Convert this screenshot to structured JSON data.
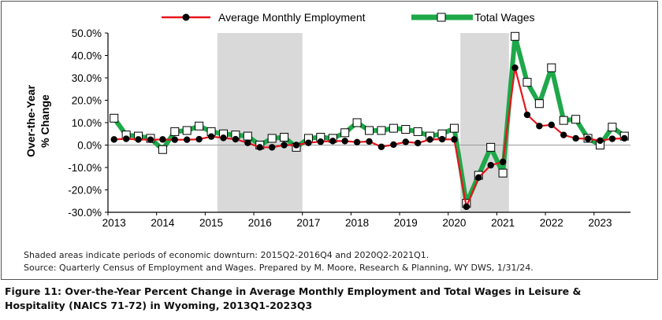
{
  "chart_data": {
    "type": "line",
    "ylabel": [
      "Over-the-Year",
      "% Change"
    ],
    "ylim": [
      -30,
      50
    ],
    "yticks": [
      "50.0%",
      "40.0%",
      "30.0%",
      "20.0%",
      "10.0%",
      "0.0%",
      "-10.0%",
      "-20.0%",
      "-30.0%"
    ],
    "xticks": [
      "2013",
      "2014",
      "2015",
      "2016",
      "2017",
      "2018",
      "2019",
      "2020",
      "2021",
      "2022",
      "2023"
    ],
    "legend": {
      "placement": "top"
    },
    "shaded_periods": [
      {
        "start": "2015Q2",
        "end": "2016Q4"
      },
      {
        "start": "2020Q2",
        "end": "2021Q1"
      }
    ],
    "quarters": [
      "2013Q1",
      "2013Q2",
      "2013Q3",
      "2013Q4",
      "2014Q1",
      "2014Q2",
      "2014Q3",
      "2014Q4",
      "2015Q1",
      "2015Q2",
      "2015Q3",
      "2015Q4",
      "2016Q1",
      "2016Q2",
      "2016Q3",
      "2016Q4",
      "2017Q1",
      "2017Q2",
      "2017Q3",
      "2017Q4",
      "2018Q1",
      "2018Q2",
      "2018Q3",
      "2018Q4",
      "2019Q1",
      "2019Q2",
      "2019Q3",
      "2019Q4",
      "2020Q1",
      "2020Q2",
      "2020Q3",
      "2020Q4",
      "2021Q1",
      "2021Q2",
      "2021Q3",
      "2021Q4",
      "2022Q1",
      "2022Q2",
      "2022Q3",
      "2022Q4",
      "2023Q1",
      "2023Q2",
      "2023Q3"
    ],
    "series": [
      {
        "name": "Average Monthly Employment",
        "color": "#e8141c",
        "marker": "black-circle",
        "values": [
          2.5,
          2.8,
          2.5,
          2.4,
          2.5,
          2.4,
          2.4,
          2.6,
          3.8,
          3.2,
          2.6,
          1.0,
          -1.0,
          -1.0,
          0.0,
          0.0,
          1.0,
          1.5,
          1.8,
          1.8,
          1.3,
          1.6,
          -0.8,
          0.2,
          1.4,
          0.9,
          2.5,
          2.6,
          2.5,
          -27.5,
          -14.5,
          -9.0,
          -7.5,
          34.5,
          13.5,
          8.5,
          9.0,
          4.5,
          3.0,
          2.8,
          2.0,
          2.8,
          3.0
        ]
      },
      {
        "name": "Total Wages",
        "color": "#1ea84a",
        "marker": "white-square",
        "values": [
          12.0,
          4.5,
          4.0,
          3.0,
          -2.0,
          6.0,
          6.5,
          8.5,
          6.0,
          5.0,
          4.5,
          4.0,
          0.0,
          3.0,
          3.5,
          -1.0,
          3.0,
          3.5,
          3.0,
          5.5,
          10.0,
          6.5,
          6.5,
          7.5,
          7.0,
          6.0,
          4.0,
          5.0,
          7.5,
          -26.0,
          -13.5,
          -1.0,
          -12.5,
          48.5,
          28.0,
          18.5,
          34.5,
          11.0,
          11.5,
          3.0,
          0.0,
          8.0,
          4.0
        ]
      }
    ]
  },
  "notes": {
    "line1": "Shaded areas indicate periods of economic downturn: 2015Q2-2016Q4 and 2020Q2-2021Q1.",
    "line2": "Source: Quarterly Census of Employment and Wages. Prepared by M. Moore, Research & Planning, WY DWS, 1/31/24."
  },
  "caption": "Figure 11: Over-the-Year Percent Change in Average Monthly Employment and Total Wages in Leisure & Hospitality (NAICS 71-72) in Wyoming, 2013Q1-2023Q3"
}
